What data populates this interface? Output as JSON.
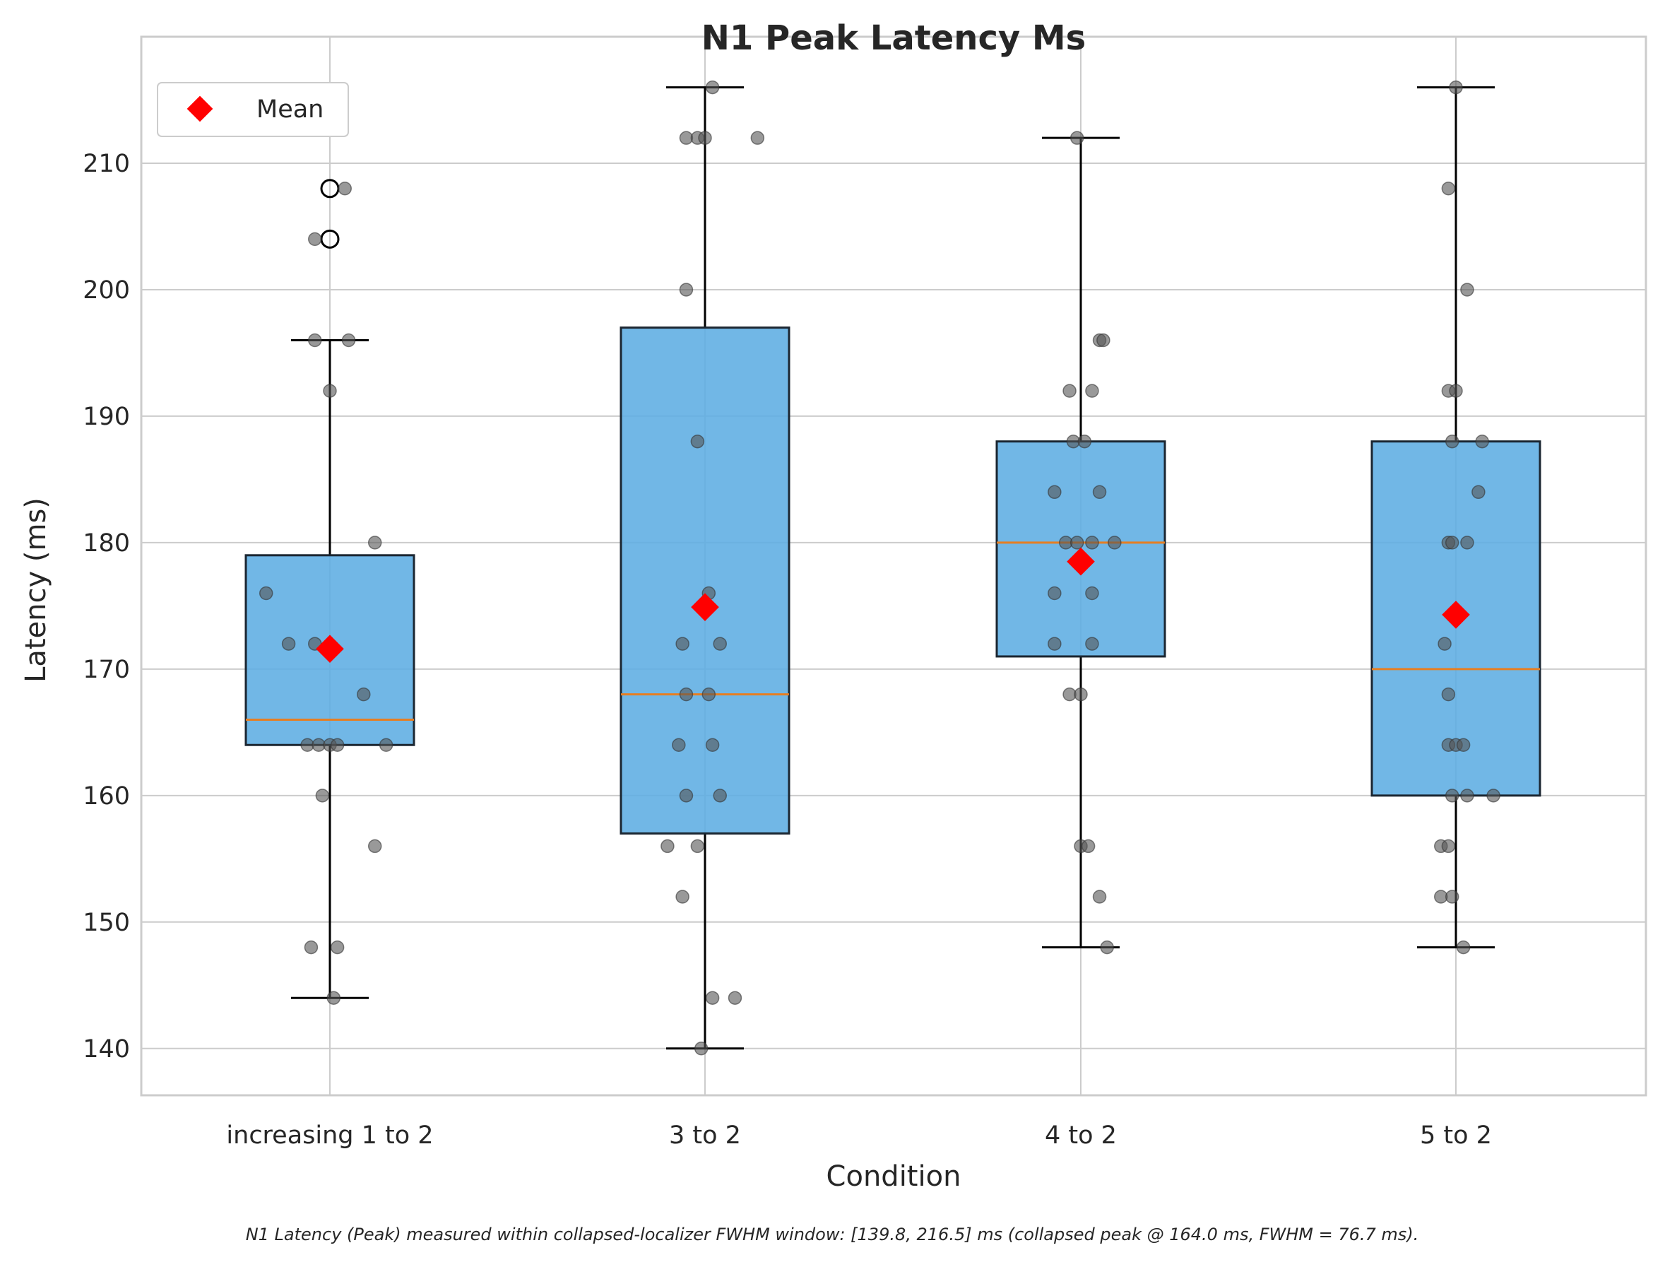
{
  "chart_data": {
    "type": "box",
    "title": "N1 Peak Latency Ms",
    "xlabel": "Condition",
    "ylabel": "Latency (ms)",
    "ylim": [
      136.3,
      220.0
    ],
    "yticks": [
      140,
      150,
      160,
      170,
      180,
      190,
      200,
      210
    ],
    "grid": true,
    "legend": {
      "position": "top-left",
      "entries": [
        {
          "label": "Mean",
          "marker": "diamond",
          "color": "#ff0000"
        }
      ]
    },
    "categories": [
      "increasing 1 to 2",
      "3 to 2",
      "4 to 2",
      "5 to 2"
    ],
    "boxes": [
      {
        "whisker_low": 144,
        "q1": 164,
        "median": 166,
        "q3": 179,
        "whisker_high": 196,
        "mean": 171.6,
        "outliers": [
          204,
          208
        ]
      },
      {
        "whisker_low": 140,
        "q1": 157,
        "median": 168,
        "q3": 197,
        "whisker_high": 216,
        "mean": 174.9,
        "outliers": []
      },
      {
        "whisker_low": 148,
        "q1": 171,
        "median": 180,
        "q3": 188,
        "whisker_high": 212,
        "mean": 178.5,
        "outliers": []
      },
      {
        "whisker_low": 148,
        "q1": 160,
        "median": 170,
        "q3": 188,
        "whisker_high": 216,
        "mean": 174.3,
        "outliers": []
      }
    ],
    "points": [
      [
        208,
        204,
        196,
        196,
        192,
        180,
        176,
        172,
        172,
        168,
        164,
        164,
        164,
        164,
        164,
        160,
        156,
        148,
        148,
        144
      ],
      [
        216,
        212,
        212,
        212,
        212,
        200,
        188,
        176,
        172,
        172,
        168,
        168,
        164,
        164,
        160,
        160,
        156,
        156,
        152,
        144,
        144,
        140
      ],
      [
        212,
        196,
        196,
        192,
        192,
        188,
        188,
        184,
        184,
        180,
        180,
        180,
        180,
        176,
        176,
        172,
        172,
        168,
        168,
        156,
        156,
        152,
        148
      ],
      [
        216,
        208,
        200,
        192,
        192,
        188,
        188,
        184,
        180,
        180,
        180,
        172,
        168,
        164,
        164,
        164,
        160,
        160,
        160,
        156,
        156,
        152,
        152,
        148
      ]
    ],
    "jitter": [
      [
        0.04,
        -0.04,
        -0.04,
        0.05,
        0.0,
        0.12,
        -0.17,
        -0.11,
        -0.04,
        0.09,
        -0.06,
        -0.03,
        0.0,
        0.02,
        0.15,
        -0.02,
        0.12,
        -0.05,
        0.02,
        0.01
      ],
      [
        0.02,
        -0.05,
        -0.02,
        0.0,
        0.14,
        -0.05,
        -0.02,
        0.01,
        -0.06,
        0.04,
        -0.05,
        0.01,
        -0.07,
        0.02,
        -0.05,
        0.04,
        -0.1,
        -0.02,
        -0.06,
        0.02,
        0.08,
        -0.01
      ],
      [
        -0.01,
        0.05,
        0.06,
        -0.03,
        0.03,
        -0.02,
        0.01,
        -0.07,
        0.05,
        -0.04,
        -0.01,
        0.03,
        0.09,
        -0.07,
        0.03,
        -0.07,
        0.03,
        -0.03,
        0.0,
        0.0,
        0.02,
        0.05,
        0.07
      ],
      [
        0.0,
        -0.02,
        0.03,
        -0.02,
        0.0,
        -0.01,
        0.07,
        0.06,
        -0.02,
        -0.01,
        0.03,
        -0.03,
        -0.02,
        -0.02,
        0.0,
        0.02,
        -0.01,
        0.03,
        0.1,
        -0.04,
        -0.02,
        -0.04,
        -0.01,
        0.02
      ]
    ],
    "colors": {
      "box_fill": "#5dade2",
      "box_edge": "#1b2631",
      "median": "#e67e22",
      "mean": "#ff0000",
      "points": "#555555"
    }
  },
  "caption": "N1 Latency (Peak) measured within collapsed-localizer FWHM window: [139.8, 216.5] ms (collapsed peak @ 164.0 ms, FWHM = 76.7 ms)."
}
